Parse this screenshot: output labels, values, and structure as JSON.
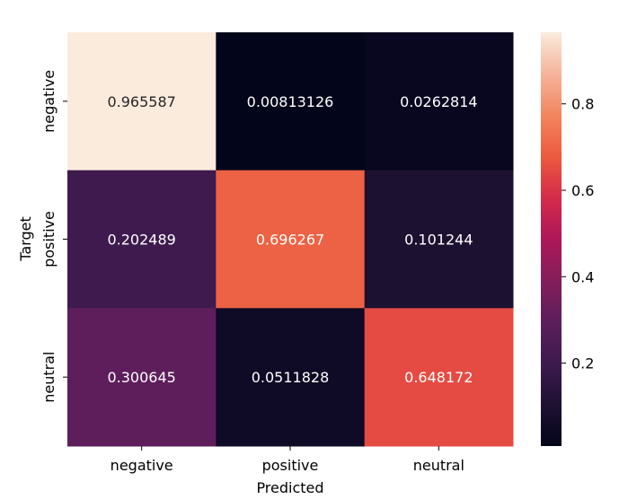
{
  "chart_data": {
    "type": "heatmap",
    "x_categories": [
      "negative",
      "positive",
      "neutral"
    ],
    "y_categories": [
      "negative",
      "positive",
      "neutral"
    ],
    "values": [
      [
        0.965587,
        0.00813126,
        0.0262814
      ],
      [
        0.202489,
        0.696267,
        0.101244
      ],
      [
        0.300645,
        0.0511828,
        0.648172
      ]
    ],
    "cell_labels": [
      [
        "0.965587",
        "0.00813126",
        "0.0262814"
      ],
      [
        "0.202489",
        "0.696267",
        "0.101244"
      ],
      [
        "0.300645",
        "0.0511828",
        "0.648172"
      ]
    ],
    "xlabel": "Predicted",
    "ylabel": "Target",
    "colormap": "rocket",
    "vmin": 0.00813126,
    "vmax": 0.965587,
    "colorbar_ticks": [
      0.2,
      0.4,
      0.6,
      0.8
    ],
    "colorbar_tick_labels": [
      "0.2",
      "0.4",
      "0.6",
      "0.8"
    ]
  }
}
